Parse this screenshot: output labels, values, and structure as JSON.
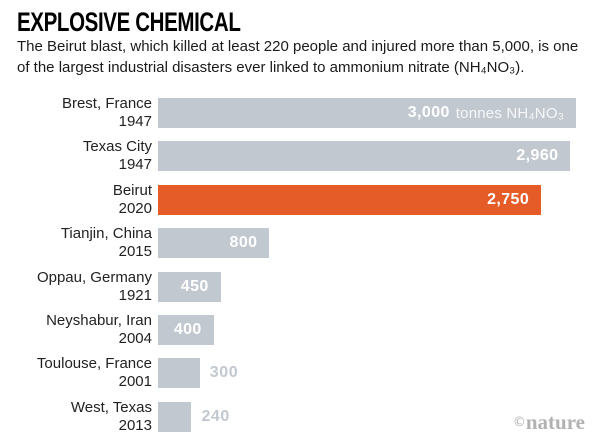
{
  "header": {
    "title": "EXPLOSIVE CHEMICAL",
    "subtitle": "The Beirut blast, which killed at least 220 people and injured more than 5,000, is one of the largest industrial disasters ever linked to ammonium nitrate (NH₄NO₃)."
  },
  "watermark": {
    "copyright": "©",
    "name": "nature"
  },
  "colors": {
    "bar": "#c2c8d0",
    "highlight": "#e55c28",
    "outside_label": "#c2c8d0",
    "category_text": "#222222",
    "watermark": "#b2b2b2"
  },
  "chart_data": {
    "type": "bar",
    "orientation": "horizontal",
    "title": "EXPLOSIVE CHEMICAL",
    "xlabel": "",
    "ylabel": "",
    "xlim": [
      0,
      3000
    ],
    "grid": false,
    "legend": "none",
    "unit": "tonnes NH₄NO₃",
    "categories": [
      "Brest, France 1947",
      "Texas City 1947",
      "Beirut 2020",
      "Tianjin, China 2015",
      "Oppau, Germany 1921",
      "Neyshabur, Iran 2004",
      "Toulouse, France 2001",
      "West, Texas 2013"
    ],
    "values": [
      3000,
      2960,
      2750,
      800,
      450,
      400,
      300,
      240
    ],
    "rows": [
      {
        "location": "Brest, France",
        "year": "1947",
        "value": 3000,
        "value_label": "3,000",
        "unit_suffix": "tonnes NH₄NO₃",
        "highlight": false,
        "label_position": "inside"
      },
      {
        "location": "Texas City",
        "year": "1947",
        "value": 2960,
        "value_label": "2,960",
        "highlight": false,
        "label_position": "inside"
      },
      {
        "location": "Beirut",
        "year": "2020",
        "value": 2750,
        "value_label": "2,750",
        "highlight": true,
        "label_position": "inside"
      },
      {
        "location": "Tianjin, China",
        "year": "2015",
        "value": 800,
        "value_label": "800",
        "highlight": false,
        "label_position": "inside"
      },
      {
        "location": "Oppau, Germany",
        "year": "1921",
        "value": 450,
        "value_label": "450",
        "highlight": false,
        "label_position": "inside"
      },
      {
        "location": "Neyshabur, Iran",
        "year": "2004",
        "value": 400,
        "value_label": "400",
        "highlight": false,
        "label_position": "inside"
      },
      {
        "location": "Toulouse, France",
        "year": "2001",
        "value": 300,
        "value_label": "300",
        "highlight": false,
        "label_position": "outside"
      },
      {
        "location": "West, Texas",
        "year": "2013",
        "value": 240,
        "value_label": "240",
        "highlight": false,
        "label_position": "outside"
      }
    ]
  }
}
